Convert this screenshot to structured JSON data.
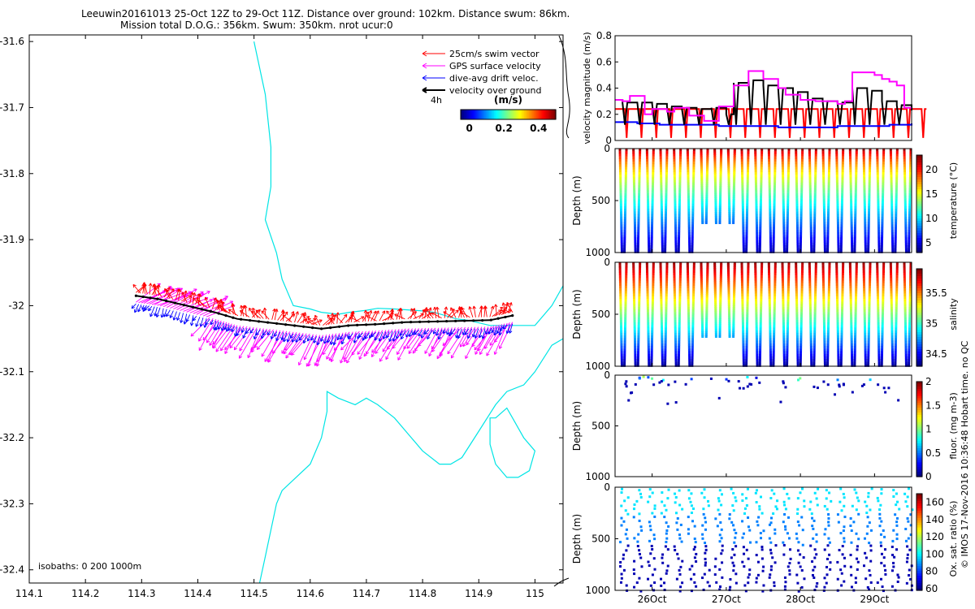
{
  "title": {
    "line1": "Leeuwin20161013 25-Oct 12Z to 29-Oct 11Z. Distance over ground: 102km. Distance swum: 86km.",
    "line2": "Mission total D.O.G.: 356km. Swum: 350km. nrot ucur:0"
  },
  "footer": "© IMOS 17-Nov-2016 10:36:48 Hobart time. no QC",
  "colors": {
    "coast": "#00e5e5",
    "swim": "#ff0000",
    "gps": "#ff00ff",
    "drift": "#0000ff",
    "ground": "#000000",
    "frame": "#000000"
  },
  "chart_data": [
    {
      "type": "scatter",
      "name": "map",
      "xlim": [
        114.1,
        115.05
      ],
      "ylim": [
        -32.42,
        -31.59
      ],
      "xticks": [
        "114.1",
        "114.2",
        "114.3",
        "114.4",
        "114.5",
        "114.6",
        "114.7",
        "114.8",
        "114.9",
        "115"
      ],
      "xtick_values": [
        114.1,
        114.2,
        114.3,
        114.4,
        114.5,
        114.6,
        114.7,
        114.8,
        114.9,
        115.0
      ],
      "yticks": [
        "-31.6",
        "-31.7",
        "-31.8",
        "-31.9",
        "-32",
        "-32.1",
        "-32.2",
        "-32.3",
        "-32.4"
      ],
      "ytick_values": [
        -31.6,
        -31.7,
        -31.8,
        -31.9,
        -32.0,
        -32.1,
        -32.2,
        -32.3,
        -32.4
      ],
      "legend": [
        {
          "label": "25cm/s swim vector",
          "color": "#ff0000"
        },
        {
          "label": "GPS surface velocity",
          "color": "#ff00ff"
        },
        {
          "label": "dive-avg drift veloc.",
          "color": "#0000ff"
        },
        {
          "label": "velocity over ground",
          "color": "#000000"
        }
      ],
      "legend_extra": "4h",
      "colorbar": {
        "title": "(m/s)",
        "ticks": [
          "0",
          "0.2",
          "0.4"
        ],
        "tick_values": [
          0,
          0.2,
          0.4
        ],
        "range": [
          -0.05,
          0.5
        ]
      },
      "isobaths_label": "isobaths: 0   200   1000m",
      "track": {
        "lon": [
          114.29,
          114.33,
          114.38,
          114.43,
          114.47,
          114.52,
          114.57,
          114.62,
          114.67,
          114.72,
          114.77,
          114.82,
          114.87,
          114.92,
          114.96
        ],
        "lat": [
          -31.985,
          -31.99,
          -32.0,
          -32.01,
          -32.02,
          -32.025,
          -32.03,
          -32.035,
          -32.03,
          -32.028,
          -32.025,
          -32.024,
          -32.023,
          -32.022,
          -32.015
        ]
      },
      "isobath_0m": {
        "lon": [
          114.5,
          114.52,
          114.53,
          114.53,
          114.52,
          114.54,
          114.55,
          114.56,
          114.57,
          114.6,
          114.62,
          114.65,
          114.67,
          114.7,
          114.72,
          114.75,
          114.8,
          114.82,
          114.84,
          114.86,
          114.88,
          114.92,
          114.97,
          115.0,
          115.03,
          115.05
        ],
        "lat": [
          -31.6,
          -31.68,
          -31.76,
          -31.82,
          -31.87,
          -31.92,
          -31.96,
          -31.98,
          -32.0,
          -32.005,
          -32.01,
          -32.013,
          -32.01,
          -32.007,
          -32.004,
          -32.005,
          -32.008,
          -32.01,
          -32.015,
          -32.02,
          -32.022,
          -32.03,
          -32.03,
          -32.03,
          -32.0,
          -31.97
        ]
      },
      "isobath_200m": {
        "lon": [
          114.51,
          114.52,
          114.53,
          114.54,
          114.55,
          114.6,
          114.62,
          114.63,
          114.63,
          114.65,
          114.68,
          114.7,
          114.72,
          114.75,
          114.78,
          114.8,
          114.83,
          114.85,
          114.87,
          114.9,
          114.93,
          114.95,
          114.98,
          115.0,
          115.03,
          115.05
        ],
        "lat": [
          -32.42,
          -32.38,
          -32.34,
          -32.3,
          -32.28,
          -32.24,
          -32.2,
          -32.16,
          -32.13,
          -32.14,
          -32.15,
          -32.14,
          -32.15,
          -32.17,
          -32.2,
          -32.22,
          -32.24,
          -32.24,
          -32.23,
          -32.19,
          -32.15,
          -32.13,
          -32.12,
          -32.1,
          -32.06,
          -32.05
        ]
      },
      "isobath_1000m": {
        "lon": [
          114.93,
          114.95,
          114.96,
          114.98,
          115.0,
          114.99,
          114.97,
          114.95,
          114.93,
          114.92,
          114.92
        ],
        "lat": [
          -32.17,
          -32.155,
          -32.17,
          -32.2,
          -32.22,
          -32.25,
          -32.26,
          -32.26,
          -32.24,
          -32.21,
          -32.17
        ]
      }
    },
    {
      "type": "line",
      "name": "velocity",
      "ylabel": "velocity magnitude (m/s)",
      "ylim": [
        0,
        0.8
      ],
      "yticks": [
        "0",
        "0.2",
        "0.4",
        "0.6",
        "0.8"
      ],
      "ytick_values": [
        0,
        0.2,
        0.4,
        0.6,
        0.8
      ],
      "xlim": [
        25.5,
        29.5
      ],
      "series": [
        {
          "name": "GPS surface velocity",
          "color": "#ff00ff",
          "x": [
            25.5,
            25.6,
            25.7,
            25.9,
            26.0,
            26.2,
            26.3,
            26.5,
            26.7,
            26.9,
            27.1,
            27.3,
            27.5,
            27.7,
            27.8,
            28.0,
            28.2,
            28.5,
            28.6,
            28.7,
            28.9,
            29.0,
            29.1,
            29.2,
            29.3,
            29.4,
            29.5
          ],
          "y": [
            0.31,
            0.3,
            0.34,
            0.2,
            0.24,
            0.22,
            0.25,
            0.19,
            0.15,
            0.26,
            0.42,
            0.53,
            0.47,
            0.4,
            0.35,
            0.31,
            0.3,
            0.28,
            0.3,
            0.52,
            0.52,
            0.5,
            0.47,
            0.45,
            0.42,
            0.25,
            0.25
          ]
        },
        {
          "name": "velocity over ground",
          "color": "#000000",
          "x": [
            25.5,
            25.6,
            25.8,
            26.0,
            26.2,
            26.4,
            26.6,
            26.8,
            27.0,
            27.1,
            27.3,
            27.5,
            27.7,
            27.9,
            28.1,
            28.3,
            28.5,
            28.7,
            28.9,
            29.1,
            29.3,
            29.5
          ],
          "y": [
            0.31,
            0.29,
            0.29,
            0.28,
            0.26,
            0.25,
            0.24,
            0.25,
            0.2,
            0.44,
            0.46,
            0.42,
            0.4,
            0.37,
            0.32,
            0.3,
            0.29,
            0.4,
            0.38,
            0.3,
            0.27,
            0.23
          ]
        },
        {
          "name": "dive-avg drift veloc.",
          "color": "#0000ff",
          "x": [
            25.5,
            25.8,
            26.1,
            26.5,
            26.9,
            27.3,
            27.7,
            28.1,
            28.5,
            28.9,
            29.2,
            29.5
          ],
          "y": [
            0.14,
            0.13,
            0.12,
            0.12,
            0.11,
            0.11,
            0.1,
            0.1,
            0.11,
            0.11,
            0.12,
            0.13
          ]
        },
        {
          "name": "25cm/s swim vector",
          "color": "#ff0000",
          "baseline": 0.24,
          "drops_per_day": 5
        }
      ]
    },
    {
      "type": "heatmap",
      "name": "temperature",
      "ylabel": "Depth (m)",
      "ylim": [
        1000,
        0
      ],
      "yticks": [
        "0",
        "500",
        "1000"
      ],
      "colorbar_label": "temperature (°C)",
      "cticks": [
        "5",
        "10",
        "15",
        "20"
      ],
      "ctick_values": [
        5,
        10,
        15,
        20
      ],
      "clim": [
        3,
        23
      ]
    },
    {
      "type": "heatmap",
      "name": "salinity",
      "ylabel": "Depth (m)",
      "ylim": [
        1000,
        0
      ],
      "yticks": [
        "0",
        "500",
        "1000"
      ],
      "colorbar_label": "salinity",
      "cticks": [
        "34.5",
        "35",
        "35.5"
      ],
      "ctick_values": [
        34.5,
        35,
        35.5
      ],
      "clim": [
        34.3,
        35.9
      ]
    },
    {
      "type": "heatmap",
      "name": "fluorescence",
      "ylabel": "Depth (m)",
      "ylim": [
        1000,
        0
      ],
      "yticks": [
        "0",
        "500",
        "1000"
      ],
      "colorbar_label": "fluor. (mg m-3)",
      "cticks": [
        "0",
        "0.5",
        "1",
        "1.5",
        "2"
      ],
      "ctick_values": [
        0,
        0.5,
        1,
        1.5,
        2
      ],
      "clim": [
        0,
        2
      ]
    },
    {
      "type": "heatmap",
      "name": "oxygen",
      "ylabel": "Depth (m)",
      "ylim": [
        1000,
        0
      ],
      "yticks": [
        "0",
        "500",
        "1000"
      ],
      "colorbar_label": "Ox. sat. ratio (%)",
      "cticks": [
        "60",
        "80",
        "100",
        "120",
        "140",
        "160"
      ],
      "ctick_values": [
        60,
        80,
        100,
        120,
        140,
        160
      ],
      "clim": [
        58,
        170
      ],
      "xticks": [
        "26Oct",
        "27Oct",
        "28Oct",
        "29Oct"
      ],
      "xtick_values": [
        26,
        27,
        28,
        29
      ],
      "xlim": [
        25.5,
        29.5
      ]
    }
  ]
}
